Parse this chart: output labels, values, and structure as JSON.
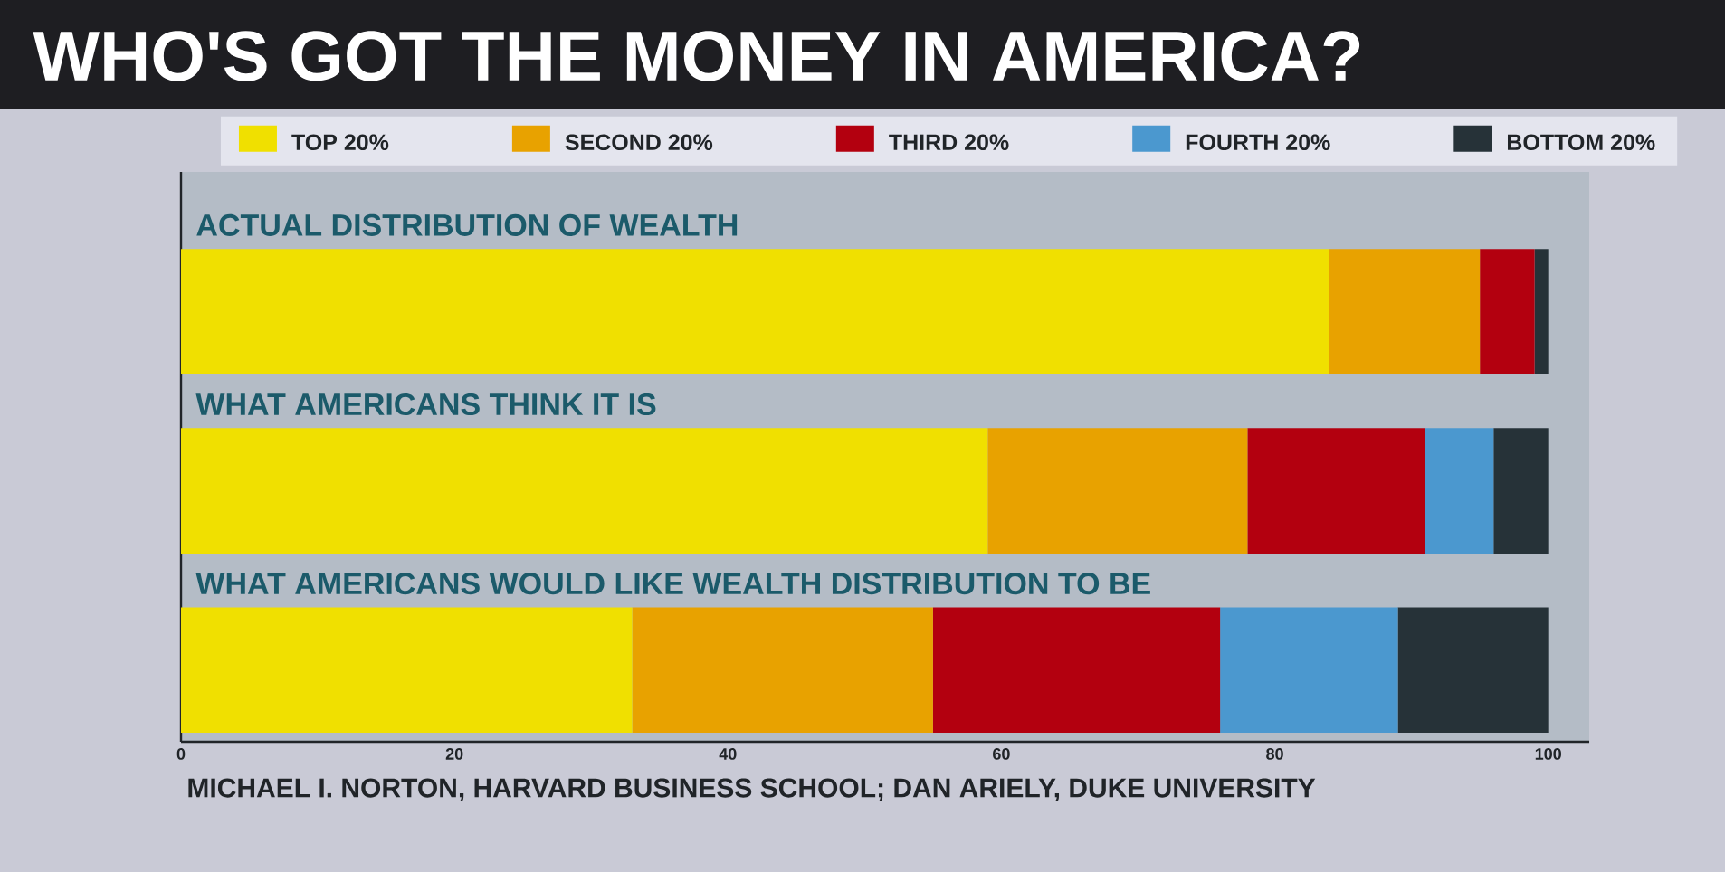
{
  "chart_data": {
    "type": "bar",
    "orientation": "horizontal",
    "stacked": true,
    "title": "WHO'S GOT THE MONEY IN AMERICA?",
    "categories": [
      "ACTUAL DISTRIBUTION OF WEALTH",
      "WHAT AMERICANS THINK IT IS",
      "WHAT AMERICANS WOULD LIKE WEALTH DISTRIBUTION TO BE"
    ],
    "series": [
      {
        "name": "TOP 20%",
        "color": "#f0e000",
        "values": [
          84,
          59,
          33
        ]
      },
      {
        "name": "SECOND 20%",
        "color": "#e8a200",
        "values": [
          11,
          19,
          22
        ]
      },
      {
        "name": "THIRD 20%",
        "color": "#b3000f",
        "values": [
          4,
          13,
          21
        ]
      },
      {
        "name": "FOURTH 20%",
        "color": "#4b98cf",
        "values": [
          0,
          5,
          13
        ]
      },
      {
        "name": "BOTTOM 20%",
        "color": "#263238",
        "values": [
          1,
          4,
          11
        ]
      }
    ],
    "xlim": [
      0,
      103
    ],
    "xticks": [
      0,
      20,
      40,
      60,
      80,
      100
    ],
    "legend": "top",
    "annotations": [
      "MICHAEL I. NORTON, HARVARD BUSINESS SCHOOL; DAN ARIELY, DUKE UNIVERSITY"
    ]
  }
}
